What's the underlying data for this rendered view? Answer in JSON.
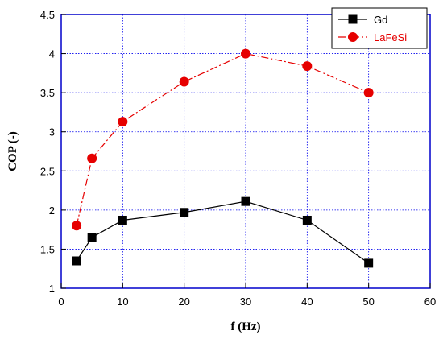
{
  "chart_data": {
    "type": "line",
    "xlabel": "f (Hz)",
    "ylabel": "COP (-)",
    "xlim": [
      0,
      60
    ],
    "ylim": [
      1,
      4.5
    ],
    "xticks": [
      0,
      10,
      20,
      30,
      40,
      50,
      60
    ],
    "yticks": [
      1,
      1.5,
      2,
      2.5,
      3,
      3.5,
      4,
      4.5
    ],
    "xtick_labels": [
      "0",
      "10",
      "20",
      "30",
      "40",
      "50",
      "60"
    ],
    "ytick_labels": [
      "1",
      "1.5",
      "2",
      "2.5",
      "3",
      "3.5",
      "4",
      "4.5"
    ],
    "grid": true,
    "legend_position": "top-right",
    "series": [
      {
        "name": "Gd",
        "color": "#000000",
        "marker": "square",
        "line": "solid",
        "x": [
          2.5,
          5,
          10,
          20,
          30,
          40,
          50
        ],
        "y": [
          1.35,
          1.65,
          1.87,
          1.97,
          2.11,
          1.87,
          1.32
        ]
      },
      {
        "name": "LaFeSi",
        "color": "#e60000",
        "marker": "circle",
        "line": "dashed",
        "x": [
          2.5,
          5,
          10,
          20,
          30,
          40,
          50
        ],
        "y": [
          1.8,
          2.66,
          3.13,
          3.64,
          4.0,
          3.84,
          3.5
        ]
      }
    ]
  }
}
